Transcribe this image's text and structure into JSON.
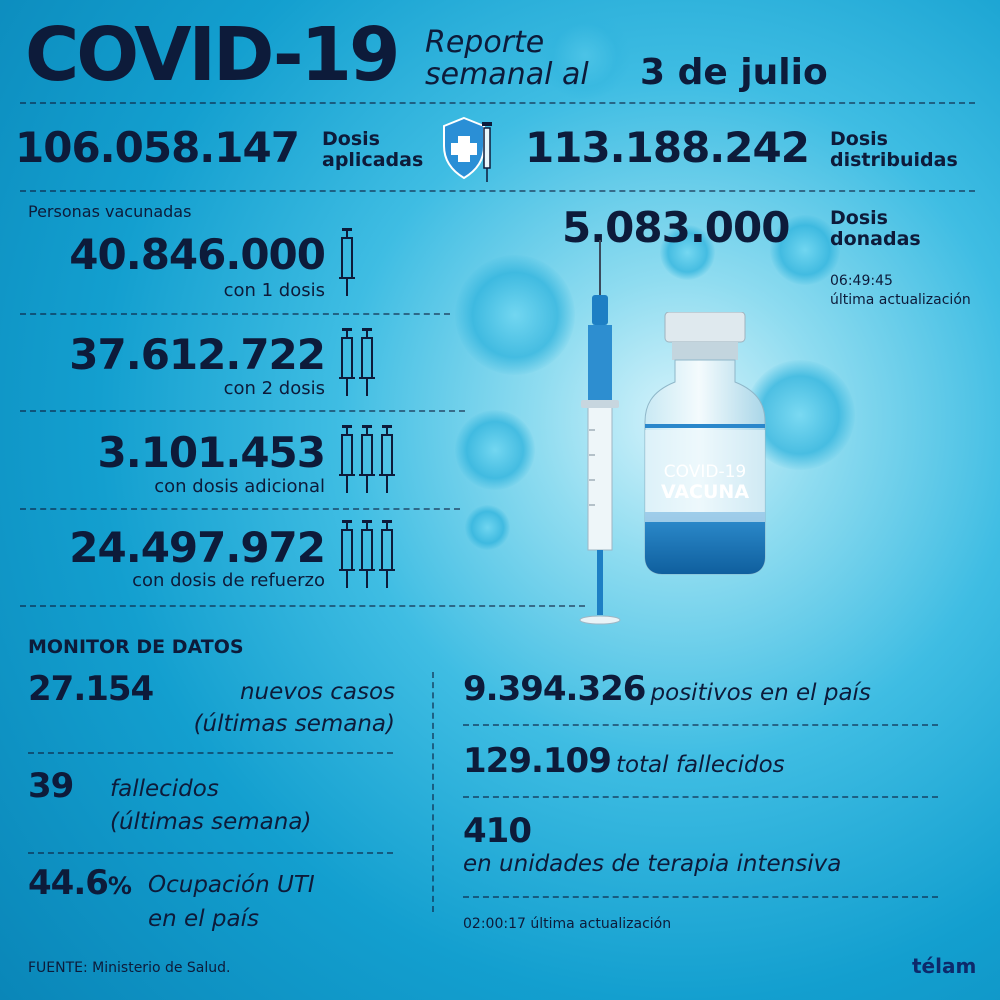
{
  "header": {
    "title": "COVID-19",
    "subtitle_line1": "Reporte",
    "subtitle_line2": "semanal al",
    "date": "3 de julio"
  },
  "doses": {
    "applied_value": "106.058.147",
    "applied_label_1": "Dosis",
    "applied_label_2": "aplicadas",
    "distributed_value": "113.188.242",
    "distributed_label_1": "Dosis",
    "distributed_label_2": "distribuidas",
    "donated_value": "5.083.000",
    "donated_label_1": "Dosis",
    "donated_label_2": "donadas",
    "update_time": "06:49:45",
    "update_label": "última actualización",
    "icon": "shield-plus-syringe-icon"
  },
  "vaccinated": {
    "heading": "Personas vacunadas",
    "rows": [
      {
        "value": "40.846.000",
        "label": "con 1 dosis"
      },
      {
        "value": "37.612.722",
        "label": "con 2 dosis"
      },
      {
        "value": "3.101.453",
        "label": "con dosis adicional"
      },
      {
        "value": "24.497.972",
        "label": "con dosis de refuerzo"
      }
    ]
  },
  "vial": {
    "line1": "COVID-19",
    "line2": "VACUNA"
  },
  "monitor": {
    "heading": "MONITOR DE DATOS",
    "new_cases_value": "27.154",
    "new_cases_label_1": "nuevos casos",
    "new_cases_label_2": "(últimas semana)",
    "deaths_week_value": "39",
    "deaths_week_label_1": "fallecidos",
    "deaths_week_label_2": "(últimas semana)",
    "icu_occ_value": "44.6",
    "icu_occ_unit": "%",
    "icu_occ_label_1": "Ocupación UTI",
    "icu_occ_label_2": "en el país",
    "positives_value": "9.394.326",
    "positives_label": "positivos en el país",
    "total_deaths_value": "129.109",
    "total_deaths_label": "total fallecidos",
    "icu_value": "410",
    "icu_label": "en unidades de terapia intensiva",
    "update_time": "02:00:17",
    "update_label": "última actualización"
  },
  "footer": {
    "source": "FUENTE: Ministerio de Salud.",
    "brand": "télam"
  }
}
